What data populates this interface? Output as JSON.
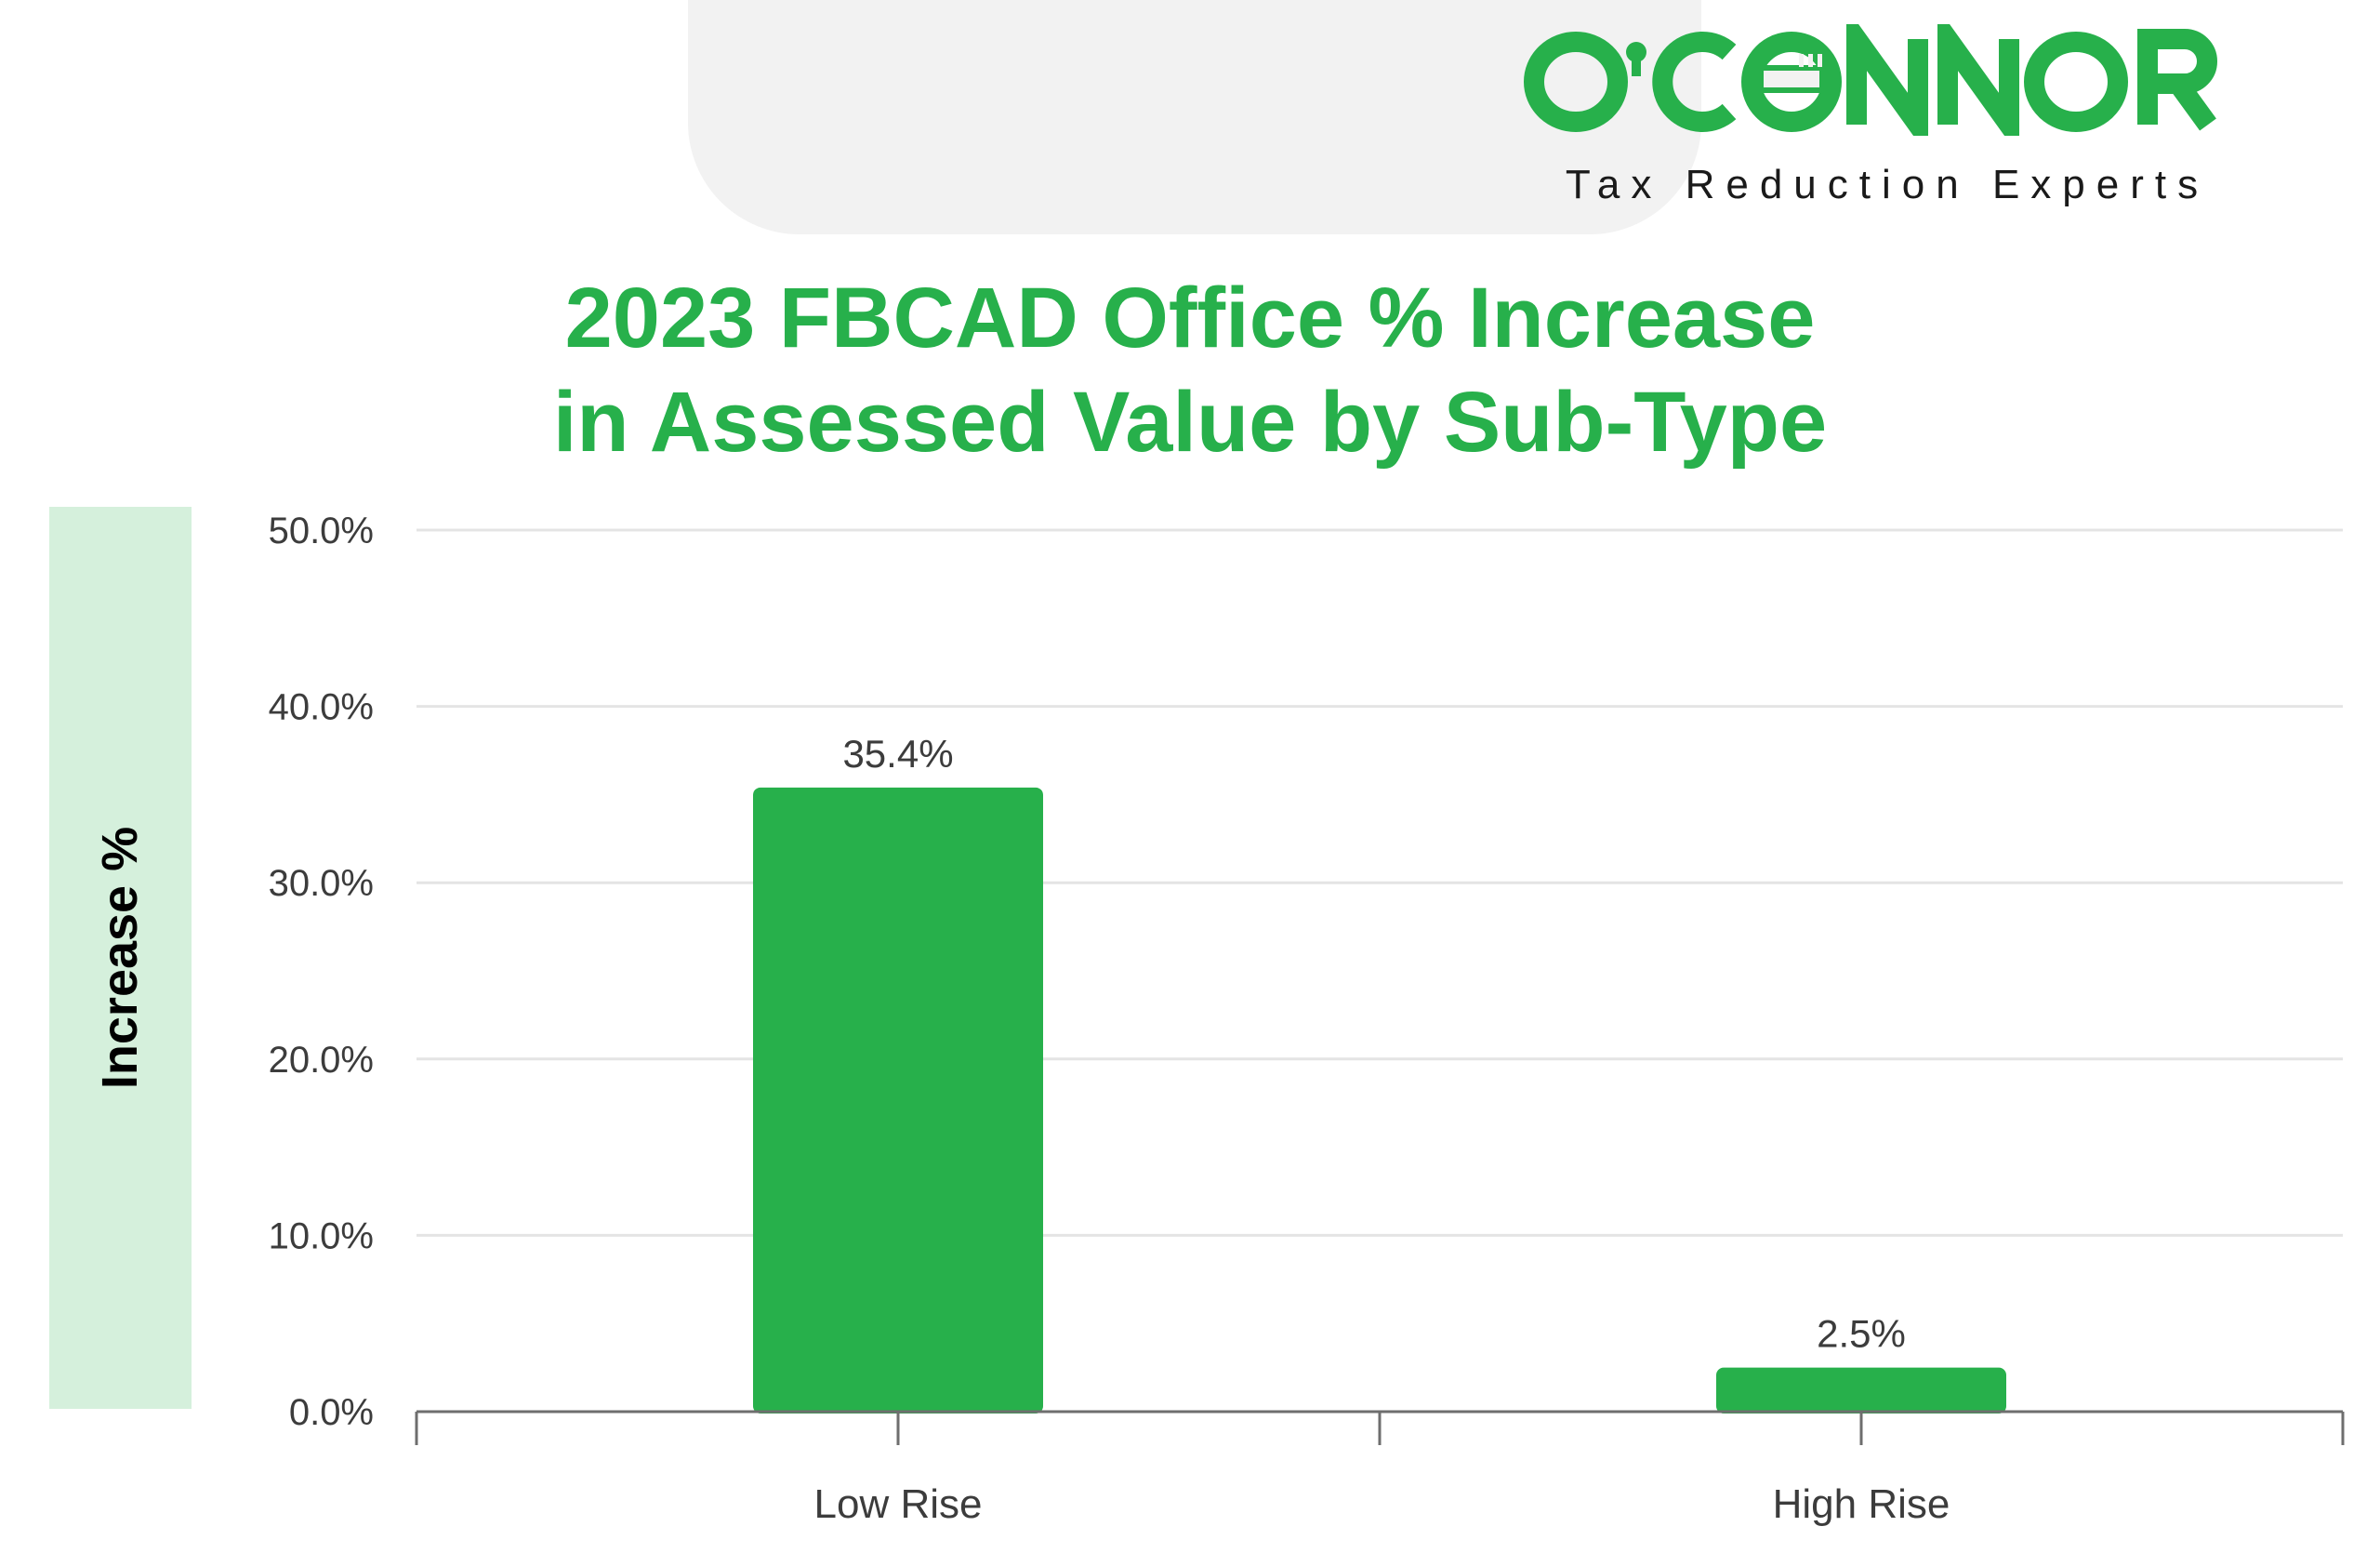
{
  "brand": {
    "name": "O'CONNOR",
    "tagline": "Tax Reduction Experts",
    "color": "#27b04b"
  },
  "chart_data": {
    "type": "bar",
    "title": [
      "2023 FBCAD Office % Increase",
      "in Assessed Value by Sub-Type"
    ],
    "xlabel": "",
    "ylabel": "Increase %",
    "categories": [
      "Low Rise",
      "High Rise"
    ],
    "values": [
      35.4,
      2.5
    ],
    "value_labels": [
      "35.4%",
      "2.5%"
    ],
    "ylim": [
      0,
      50
    ],
    "yticks": [
      0,
      10,
      20,
      30,
      40,
      50
    ],
    "ytick_labels": [
      "0.0%",
      "10.0%",
      "20.0%",
      "30.0%",
      "40.0%",
      "50.0%"
    ],
    "grid": true,
    "legend": "none",
    "bar_color": "#27b04b"
  }
}
